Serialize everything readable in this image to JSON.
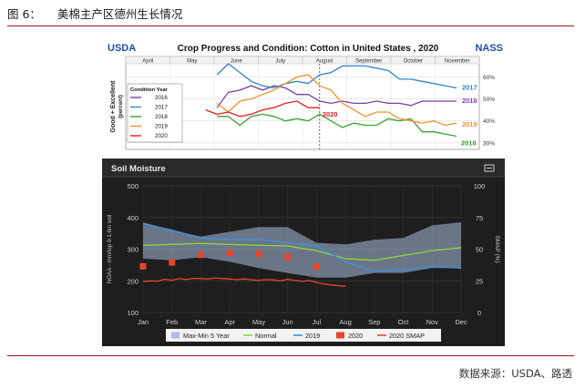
{
  "header": {
    "figure_number": "图 6：",
    "title": "美棉主产区德州生长情况"
  },
  "footer": {
    "source": "数据来源：USDA、路透"
  },
  "chart1_header": {
    "left_logo": "USDA",
    "right_logo": "NASS"
  },
  "chart2_header": {
    "panel_title": "Soil Moisture",
    "menu_icon": "menu-icon"
  },
  "colors": {
    "s2016": "#7b3fa0",
    "s2017": "#2e86c8",
    "s2018": "#3aa332",
    "s2019": "#f0922b",
    "s2020": "#e02020",
    "band": "#a9c0e0",
    "normal": "#8ed13a",
    "line2019": "#3f8fe0",
    "point2020": "#e8452a",
    "smap": "#e8452a"
  },
  "chart_data": [
    {
      "type": "line",
      "title": "Crop Progress and Condition: Cotton in United States , 2020",
      "ylabel": "Good + Excellent (percent)",
      "xlabel": "",
      "months": [
        "April",
        "May",
        "June",
        "July",
        "August",
        "September",
        "October",
        "November"
      ],
      "yticks": [
        "30%",
        "40%",
        "50%",
        "60%"
      ],
      "ylim": [
        27,
        66
      ],
      "xlim": [
        0,
        31
      ],
      "grid": true,
      "legend": {
        "title": "Condition Year",
        "placement": "left"
      },
      "current_week_marker": 17,
      "series": [
        {
          "name": "2016",
          "end_label": "2016",
          "x": [
            8,
            9,
            10,
            11,
            12,
            13,
            14,
            15,
            16,
            17,
            18,
            19,
            20,
            21,
            22,
            23,
            24,
            25,
            26,
            27,
            28,
            29
          ],
          "values": [
            46,
            53,
            54,
            56,
            54,
            56,
            55,
            52,
            52,
            49,
            48,
            49,
            48,
            48,
            49,
            48,
            48,
            47,
            49,
            49,
            49,
            49
          ]
        },
        {
          "name": "2017",
          "end_label": "2017",
          "x": [
            8,
            9,
            10,
            11,
            12,
            13,
            14,
            15,
            16,
            17,
            18,
            19,
            20,
            21,
            22,
            23,
            24,
            25,
            26,
            27,
            28,
            29
          ],
          "values": [
            61,
            66,
            62,
            58,
            56,
            55,
            57,
            58,
            57,
            61,
            62,
            65,
            65,
            65,
            64,
            63,
            59,
            59,
            58,
            57,
            56,
            55
          ]
        },
        {
          "name": "2018",
          "end_label": "2018",
          "x": [
            8,
            9,
            10,
            11,
            12,
            13,
            14,
            15,
            16,
            17,
            18,
            19,
            20,
            21,
            22,
            23,
            24,
            25,
            26,
            27,
            28,
            29
          ],
          "values": [
            42,
            42,
            38,
            42,
            43,
            42,
            40,
            41,
            40,
            43,
            40,
            37,
            39,
            38,
            38,
            41,
            40,
            41,
            35,
            35,
            34,
            33
          ]
        },
        {
          "name": "2019",
          "end_label": "2019",
          "x": [
            8,
            9,
            10,
            11,
            12,
            13,
            14,
            15,
            16,
            17,
            18,
            19,
            20,
            21,
            22,
            23,
            24,
            25,
            26,
            27,
            28,
            29
          ],
          "values": [
            48,
            44,
            49,
            50,
            52,
            54,
            57,
            60,
            61,
            56,
            54,
            48,
            45,
            42,
            44,
            44,
            41,
            40,
            39,
            40,
            38,
            39
          ]
        },
        {
          "name": "2020",
          "end_label": "2020",
          "x": [
            7,
            8,
            9,
            10,
            11,
            12,
            13,
            14,
            15,
            16,
            17
          ],
          "values": [
            45,
            43,
            44,
            42,
            43,
            45,
            46,
            48,
            49,
            46,
            46
          ]
        }
      ]
    },
    {
      "type": "line",
      "title": "Soil Moisture",
      "ylabel": "NOAA - mm/top 0-1.6m soil",
      "ylabel_right": "SMAP (%)",
      "categories": [
        "Jan",
        "Feb",
        "Mar",
        "Apr",
        "May",
        "Jun",
        "Jul",
        "Aug",
        "Sep",
        "Oct",
        "Nov",
        "Dec"
      ],
      "ylim": [
        100,
        500
      ],
      "yticks": [
        100,
        200,
        300,
        400,
        500
      ],
      "ylim_right": [
        0,
        100
      ],
      "yticks_right": [
        0,
        25,
        50,
        75,
        100
      ],
      "grid": true,
      "legend": {
        "placement": "bottom"
      },
      "band": {
        "name": "Max-Min 5 Year",
        "x": [
          0,
          1,
          2,
          3,
          4,
          5,
          6,
          7,
          8,
          9,
          10,
          11
        ],
        "max": [
          385,
          360,
          340,
          355,
          370,
          370,
          320,
          315,
          330,
          335,
          375,
          385
        ],
        "min": [
          270,
          265,
          275,
          260,
          240,
          225,
          210,
          210,
          225,
          225,
          240,
          240
        ]
      },
      "series": [
        {
          "name": "Normal",
          "x": [
            0,
            1,
            2,
            3,
            4,
            5,
            6,
            7,
            8,
            9,
            10,
            11
          ],
          "values": [
            312,
            315,
            318,
            315,
            312,
            310,
            295,
            270,
            265,
            280,
            295,
            305
          ]
        },
        {
          "name": "2019",
          "x": [
            0,
            1,
            2,
            3,
            4,
            5,
            6,
            7,
            8,
            9,
            10,
            11
          ],
          "values": [
            380,
            360,
            335,
            330,
            330,
            320,
            310,
            260,
            230,
            235,
            245,
            240
          ]
        },
        {
          "name": "2020",
          "kind": "points",
          "x": [
            0,
            1,
            2,
            3,
            4,
            5,
            6
          ],
          "values": [
            246,
            258,
            282,
            288,
            285,
            275,
            245
          ]
        },
        {
          "name": "2020 SMAP",
          "x": [
            0,
            0.25,
            0.5,
            0.75,
            1,
            1.25,
            1.5,
            1.75,
            2,
            2.25,
            2.5,
            2.75,
            3,
            3.25,
            3.5,
            3.75,
            4,
            4.25,
            4.5,
            4.75,
            5,
            5.25,
            5.5,
            5.75,
            6,
            6.25,
            6.5,
            6.75,
            7
          ],
          "values": [
            198,
            200,
            199,
            205,
            202,
            207,
            204,
            208,
            207,
            206,
            209,
            207,
            206,
            204,
            206,
            203,
            202,
            204,
            203,
            200,
            205,
            201,
            198,
            201,
            195,
            190,
            187,
            185,
            183
          ]
        }
      ]
    }
  ]
}
